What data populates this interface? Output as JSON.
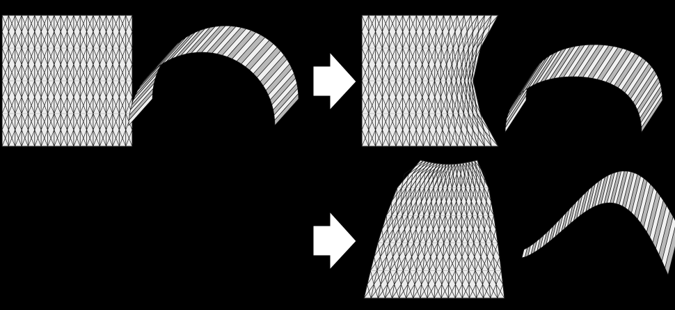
{
  "colors": {
    "background": "#000000",
    "pattern_fill": "#ececec",
    "pattern_stroke": "#1a1a1a",
    "face_light": "#f0f0f0",
    "face_dark": "#b8b8b8",
    "arrow_fill": "#ffffff"
  },
  "figure": {
    "panels": [
      {
        "id": "original-crease-pattern",
        "kind": "flat-pattern",
        "shape": "square"
      },
      {
        "id": "original-folded-vault",
        "kind": "folded-3d"
      },
      {
        "id": "arrow-top",
        "kind": "arrow",
        "direction": "right"
      },
      {
        "id": "modified-crease-pattern",
        "kind": "flat-pattern",
        "shape": "concave-right-edge"
      },
      {
        "id": "modified-folded-vault",
        "kind": "folded-3d"
      },
      {
        "id": "arrow-bottom",
        "kind": "arrow",
        "direction": "right"
      },
      {
        "id": "tapered-crease-pattern",
        "kind": "flat-pattern",
        "shape": "fan-tapered"
      },
      {
        "id": "tapered-folded-shell",
        "kind": "folded-3d"
      }
    ]
  }
}
